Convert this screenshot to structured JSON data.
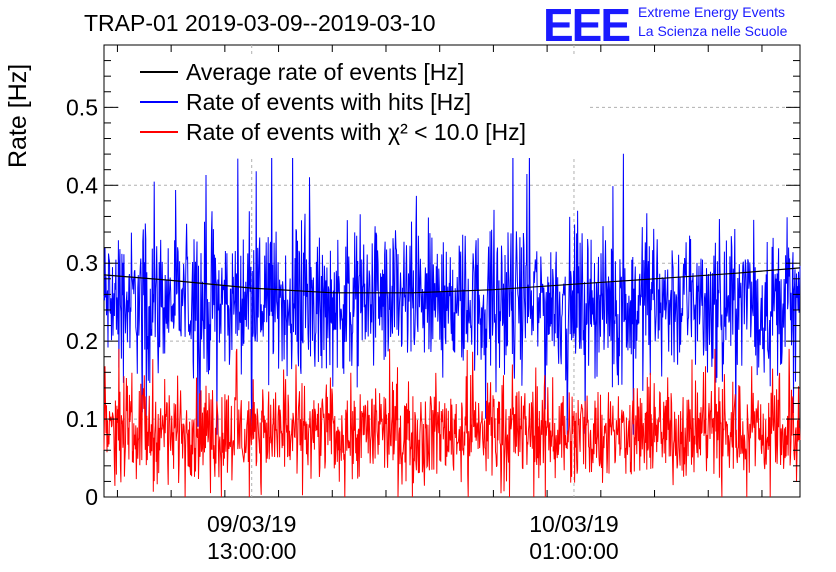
{
  "title": "TRAP-01 2019-03-09--2019-03-10",
  "logo": {
    "mark": "EEE",
    "line1": "Extreme Energy Events",
    "line2": "La Scienza nelle Scuole"
  },
  "chart_data": {
    "type": "line",
    "title": "TRAP-01 2019-03-09--2019-03-10",
    "xlabel": "",
    "ylabel": "Rate [Hz]",
    "ylim": [
      0,
      0.58
    ],
    "yticks": [
      0,
      0.1,
      0.2,
      0.3,
      0.4,
      0.5
    ],
    "ytick_labels": [
      "0",
      "0.1",
      "0.2",
      "0.3",
      "0.4",
      "0.5"
    ],
    "xlim": [
      "2019-03-09 07:30",
      "2019-03-10 09:25"
    ],
    "xticks": [
      {
        "date": "09/03/19",
        "time": "13:00:00"
      },
      {
        "date": "10/03/19",
        "time": "01:00:00"
      }
    ],
    "grid": true,
    "legend_position": "top-left",
    "series": [
      {
        "name": "Average rate of events [Hz]",
        "color": "#000000",
        "x": [
          "2019-03-09 07:30",
          "2019-03-09 10:00",
          "2019-03-09 13:00",
          "2019-03-09 16:00",
          "2019-03-09 19:00",
          "2019-03-09 22:00",
          "2019-03-10 01:00",
          "2019-03-10 04:00",
          "2019-03-10 07:00",
          "2019-03-10 09:25"
        ],
        "values": [
          0.285,
          0.278,
          0.268,
          0.262,
          0.262,
          0.266,
          0.273,
          0.28,
          0.287,
          0.294
        ]
      },
      {
        "name": "Rate of events with hits [Hz]",
        "color": "#0000ff",
        "x": [
          "2019-03-09 07:30",
          "2019-03-10 09:25"
        ],
        "values": [
          0.25,
          0.25
        ],
        "spread": [
          0.08,
          0.46
        ]
      },
      {
        "name": "Rate of events with χ² < 10.0 [Hz]",
        "color": "#ff0000",
        "x": [
          "2019-03-09 07:30",
          "2019-03-10 09:25"
        ],
        "values": [
          0.085,
          0.085
        ],
        "spread": [
          0,
          0.19
        ]
      }
    ]
  }
}
